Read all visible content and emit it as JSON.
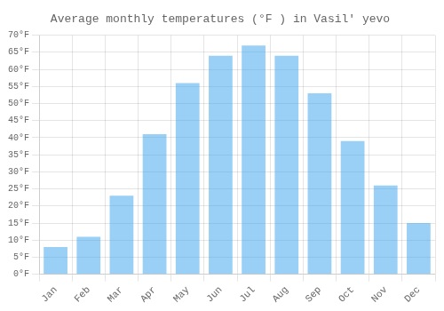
{
  "chart_data": {
    "type": "bar",
    "title": "Average monthly temperatures (°F ) in Vasilʹ yevo",
    "categories": [
      "Jan",
      "Feb",
      "Mar",
      "Apr",
      "May",
      "Jun",
      "Jul",
      "Aug",
      "Sep",
      "Oct",
      "Nov",
      "Dec"
    ],
    "values": [
      8,
      11,
      23,
      41,
      56,
      64,
      67,
      64,
      53,
      39,
      26,
      15
    ],
    "ylim": [
      0,
      70
    ],
    "yticks": [
      {
        "value": 0,
        "label": "0°F"
      },
      {
        "value": 5,
        "label": "5°F"
      },
      {
        "value": 10,
        "label": "10°F"
      },
      {
        "value": 15,
        "label": "15°F"
      },
      {
        "value": 20,
        "label": "20°F"
      },
      {
        "value": 25,
        "label": "25°F"
      },
      {
        "value": 30,
        "label": "30°F"
      },
      {
        "value": 35,
        "label": "35°F"
      },
      {
        "value": 40,
        "label": "40°F"
      },
      {
        "value": 45,
        "label": "45°F"
      },
      {
        "value": 50,
        "label": "50°F"
      },
      {
        "value": 55,
        "label": "55°F"
      },
      {
        "value": 60,
        "label": "60°F"
      },
      {
        "value": 65,
        "label": "65°F"
      },
      {
        "value": 70,
        "label": "70°F"
      }
    ],
    "grid": true
  }
}
